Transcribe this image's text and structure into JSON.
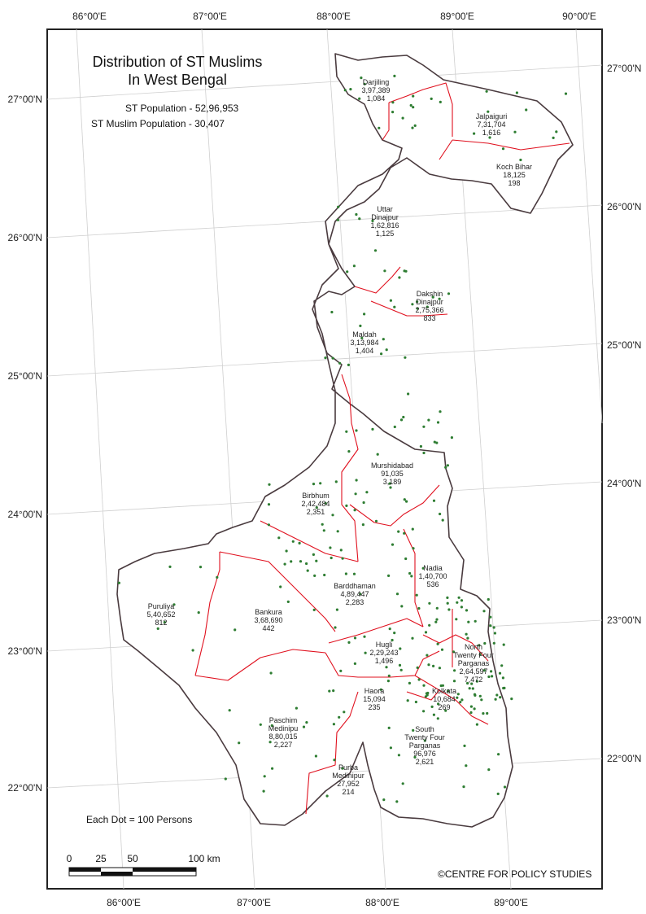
{
  "title": {
    "line1": "Distribution of ST Muslims",
    "line2": "In West Bengal"
  },
  "stats": {
    "st_population": "ST Population - 52,96,953",
    "st_muslim_population": "ST Muslim Population - 30,407"
  },
  "legend": {
    "dot_value": "Each Dot = 100 Persons"
  },
  "scalebar": {
    "labels": [
      "0",
      "25",
      "50",
      "100 km"
    ]
  },
  "credit": "©CENTRE FOR POLICY STUDIES",
  "axes": {
    "top_longitudes": [
      "86°00'E",
      "87°00'E",
      "88°00'E",
      "89°00'E",
      "90°00'E"
    ],
    "bottom_longitudes": [
      "86°00'E",
      "87°00'E",
      "88°00'E",
      "89°00'E"
    ],
    "left_latitudes": [
      "27°00'N",
      "26°00'N",
      "25°00'N",
      "24°00'N",
      "23°00'N",
      "22°00'N"
    ],
    "right_latitudes": [
      "27°00'N",
      "26°00'N",
      "25°00'N",
      "24°00'N",
      "23°00'N",
      "22°00'N"
    ]
  },
  "districts": [
    {
      "name": "Darjiling",
      "st_population": "3,97,389",
      "st_muslims": "1,084"
    },
    {
      "name": "Jalpaiguri",
      "st_population": "7,31,704",
      "st_muslims": "1,616"
    },
    {
      "name": "Koch Bihar",
      "st_population": "18,125",
      "st_muslims": "198"
    },
    {
      "name": "Uttar Dinajpur",
      "st_population": "1,62,816",
      "st_muslims": "1,125"
    },
    {
      "name": "Dakshin Dinajpur",
      "st_population": "2,75,366",
      "st_muslims": "833"
    },
    {
      "name": "Maldah",
      "st_population": "3,13,984",
      "st_muslims": "1,404"
    },
    {
      "name": "Murshidabad",
      "st_population": "91,035",
      "st_muslims": "3,189"
    },
    {
      "name": "Birbhum",
      "st_population": "2,42,484",
      "st_muslims": "2,351"
    },
    {
      "name": "Nadia",
      "st_population": "1,40,700",
      "st_muslims": "536"
    },
    {
      "name": "Barddhaman",
      "st_population": "4,89,447",
      "st_muslims": "2,283"
    },
    {
      "name": "Puruliya",
      "st_population": "5,40,652",
      "st_muslims": "812"
    },
    {
      "name": "Bankura",
      "st_population": "3,68,690",
      "st_muslims": "442"
    },
    {
      "name": "Hugli",
      "st_population": "2,29,243",
      "st_muslims": "1,496"
    },
    {
      "name": "North Twenty Four Parganas",
      "st_population": "2,64,597",
      "st_muslims": "7,472"
    },
    {
      "name": "Kolkata",
      "st_population": "10,684",
      "st_muslims": "269"
    },
    {
      "name": "Haora",
      "st_population": "15,094",
      "st_muslims": "235"
    },
    {
      "name": "Paschim Medinipu",
      "st_population": "8,80,015",
      "st_muslims": "2,227"
    },
    {
      "name": "South Twenty Four Parganas",
      "st_population": "96,976",
      "st_muslims": "2,621"
    },
    {
      "name": "Purba Medinipur",
      "st_population": "27,952",
      "st_muslims": "214"
    }
  ],
  "colors": {
    "district_boundary": "#e0101e",
    "state_boundary": "#4a3b3f",
    "dot": "#2e7d32",
    "graticule": "#cfcfcf",
    "frame": "#222222"
  }
}
